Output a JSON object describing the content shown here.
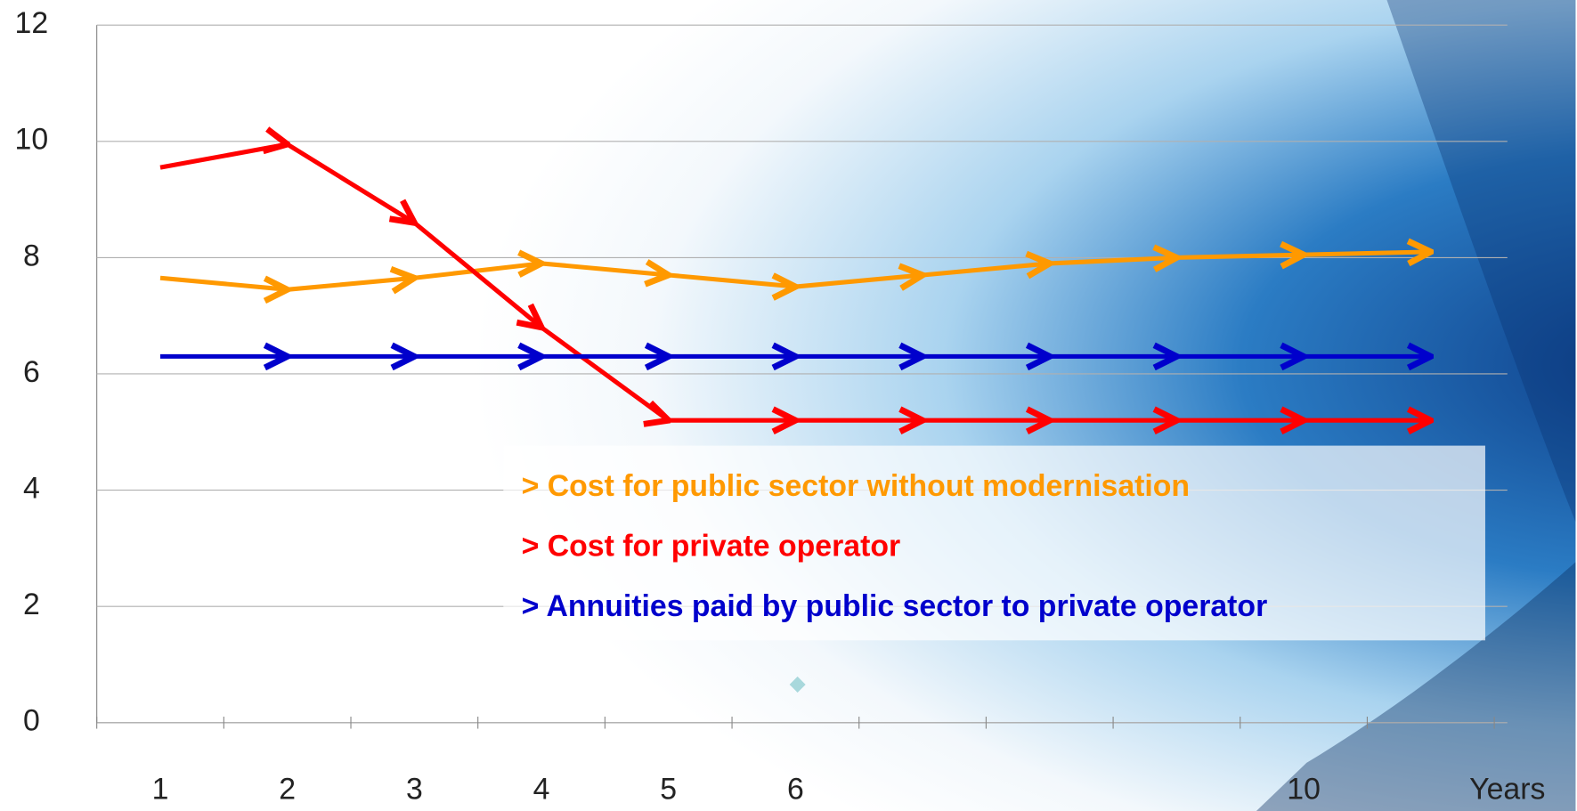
{
  "chart_data": {
    "type": "line",
    "categories": [
      "1",
      "2",
      "3",
      "4",
      "5",
      "6",
      null,
      null,
      null,
      "10",
      null
    ],
    "x_label": "Years",
    "series": [
      {
        "name": "> Cost for public sector without modernisation",
        "color": "#ff9900",
        "values": [
          7.65,
          7.45,
          7.65,
          7.9,
          7.7,
          7.5,
          7.7,
          7.9,
          8.0,
          8.05,
          8.1
        ]
      },
      {
        "name": "> Cost for private operator",
        "color": "#ff0000",
        "values": [
          9.55,
          9.95,
          8.6,
          6.8,
          5.2,
          5.2,
          5.2,
          5.2,
          5.2,
          5.2,
          5.2
        ]
      },
      {
        "name": "> Annuities paid by public sector to private operator",
        "color": "#0000cc",
        "values": [
          6.3,
          6.3,
          6.3,
          6.3,
          6.3,
          6.3,
          6.3,
          6.3,
          6.3,
          6.3,
          6.3
        ]
      }
    ],
    "ylim": [
      0,
      12
    ],
    "yticks": [
      0,
      2,
      4,
      6,
      8,
      10,
      12
    ],
    "grid": true
  }
}
